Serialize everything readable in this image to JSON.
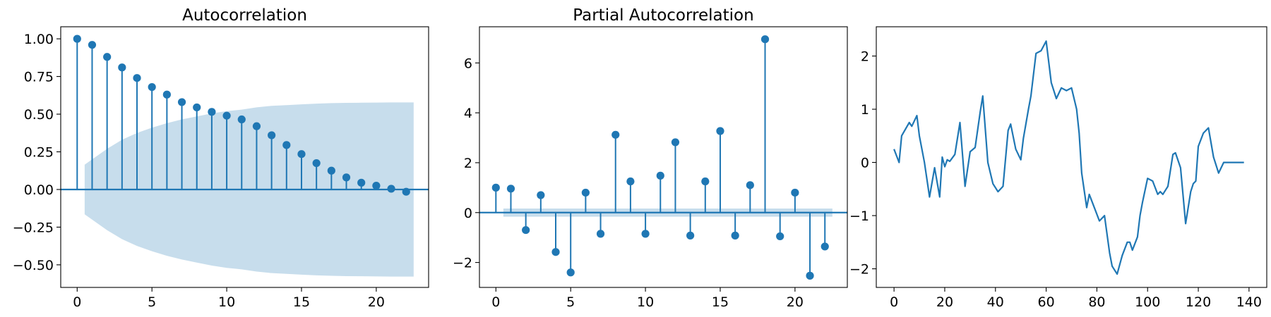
{
  "chart_data": [
    {
      "type": "stem",
      "title": "Autocorrelation",
      "x": [
        0,
        1,
        2,
        3,
        4,
        5,
        6,
        7,
        8,
        9,
        10,
        11,
        12,
        13,
        14,
        15,
        16,
        17,
        18,
        19,
        20,
        21,
        22
      ],
      "values": [
        1.0,
        0.96,
        0.88,
        0.81,
        0.74,
        0.68,
        0.63,
        0.58,
        0.545,
        0.515,
        0.49,
        0.465,
        0.42,
        0.36,
        0.295,
        0.235,
        0.175,
        0.125,
        0.08,
        0.045,
        0.025,
        0.005,
        -0.015
      ],
      "confidence_band": {
        "x": [
          0.5,
          1,
          2,
          3,
          4,
          5,
          6,
          7,
          8,
          9,
          10,
          11,
          12,
          13,
          14,
          15,
          16,
          17,
          18,
          19,
          20,
          21,
          22,
          22.5
        ],
        "upper": [
          0.165,
          0.2,
          0.27,
          0.33,
          0.375,
          0.41,
          0.44,
          0.465,
          0.485,
          0.505,
          0.52,
          0.53,
          0.545,
          0.555,
          0.56,
          0.565,
          0.57,
          0.573,
          0.575,
          0.576,
          0.577,
          0.578,
          0.578,
          0.578
        ]
      },
      "xlim": [
        -1.1,
        23.5
      ],
      "ylim": [
        -0.65,
        1.08
      ],
      "xticks": [
        0,
        5,
        10,
        15,
        20
      ],
      "yticks": [
        1.0,
        0.75,
        0.5,
        0.25,
        0.0,
        -0.25,
        -0.5
      ],
      "ytick_labels": [
        "1.00",
        "0.75",
        "0.50",
        "0.25",
        "0.00",
        "−0.25",
        "−0.50"
      ],
      "xlabel": "",
      "ylabel": "",
      "color": "#1f77b4",
      "band_color": "#1f77b4"
    },
    {
      "type": "stem",
      "title": "Partial Autocorrelation",
      "x": [
        0,
        1,
        2,
        3,
        4,
        5,
        6,
        7,
        8,
        9,
        10,
        11,
        12,
        13,
        14,
        15,
        16,
        17,
        18,
        19,
        20,
        21,
        22
      ],
      "values": [
        1.0,
        0.96,
        -0.7,
        0.7,
        -1.58,
        -2.4,
        0.8,
        -0.85,
        3.12,
        1.25,
        -0.85,
        1.48,
        2.82,
        -0.92,
        1.25,
        3.27,
        -0.92,
        1.1,
        6.95,
        -0.95,
        0.8,
        -2.53,
        -1.36
      ],
      "confidence_band": {
        "lo": 0.5,
        "hi": 22.5,
        "upper": 0.165
      },
      "xlim": [
        -1.1,
        23.5
      ],
      "ylim": [
        -3.0,
        7.45
      ],
      "xticks": [
        0,
        5,
        10,
        15,
        20
      ],
      "yticks": [
        6,
        4,
        2,
        0,
        -2
      ],
      "ytick_labels": [
        "6",
        "4",
        "2",
        "0",
        "−2"
      ],
      "xlabel": "",
      "ylabel": "",
      "color": "#1f77b4",
      "band_color": "#1f77b4"
    },
    {
      "type": "line",
      "title": "",
      "x": [
        0,
        2,
        3,
        6,
        7,
        9,
        10,
        12,
        14,
        16,
        18,
        19,
        20,
        21,
        22,
        24,
        26,
        28,
        30,
        32,
        34,
        35,
        37,
        39,
        41,
        43,
        45,
        46,
        48,
        50,
        51,
        53,
        54,
        56,
        58,
        60,
        62,
        64,
        66,
        68,
        70,
        72,
        73,
        74,
        76,
        77,
        79,
        81,
        83,
        85,
        86,
        88,
        90,
        92,
        93,
        94,
        96,
        97,
        98,
        100,
        102,
        104,
        105,
        106,
        108,
        110,
        111,
        113,
        115,
        117,
        118,
        119,
        120,
        122,
        124,
        126,
        128,
        130,
        132,
        134,
        136,
        137,
        138
      ],
      "y": [
        0.25,
        0.0,
        0.5,
        0.75,
        0.68,
        0.88,
        0.5,
        0.0,
        -0.65,
        -0.1,
        -0.65,
        0.1,
        -0.08,
        0.05,
        0.02,
        0.15,
        0.75,
        -0.45,
        0.2,
        0.28,
        0.95,
        1.25,
        0.0,
        -0.4,
        -0.55,
        -0.45,
        0.6,
        0.72,
        0.25,
        0.05,
        0.45,
        1.0,
        1.25,
        2.05,
        2.1,
        2.28,
        1.5,
        1.2,
        1.4,
        1.35,
        1.4,
        1.0,
        0.55,
        -0.2,
        -0.85,
        -0.6,
        -0.85,
        -1.1,
        -1.0,
        -1.7,
        -1.95,
        -2.1,
        -1.75,
        -1.5,
        -1.5,
        -1.65,
        -1.4,
        -1.0,
        -0.75,
        -0.3,
        -0.35,
        -0.6,
        -0.55,
        -0.6,
        -0.45,
        0.15,
        0.18,
        -0.1,
        -1.15,
        -0.55,
        -0.4,
        -0.35,
        0.3,
        0.55,
        0.65,
        0.1,
        -0.2,
        0.0,
        0.0,
        0.0,
        0.0,
        0.0,
        0.0
      ],
      "xlim": [
        -7,
        147
      ],
      "ylim": [
        -2.35,
        2.55
      ],
      "xticks": [
        0,
        20,
        40,
        60,
        80,
        100,
        120,
        140
      ],
      "yticks": [
        2,
        1,
        0,
        -1,
        -2
      ],
      "ytick_labels": [
        "2",
        "1",
        "0",
        "−1",
        "−2"
      ],
      "xlabel": "",
      "ylabel": "",
      "color": "#1f77b4"
    }
  ]
}
